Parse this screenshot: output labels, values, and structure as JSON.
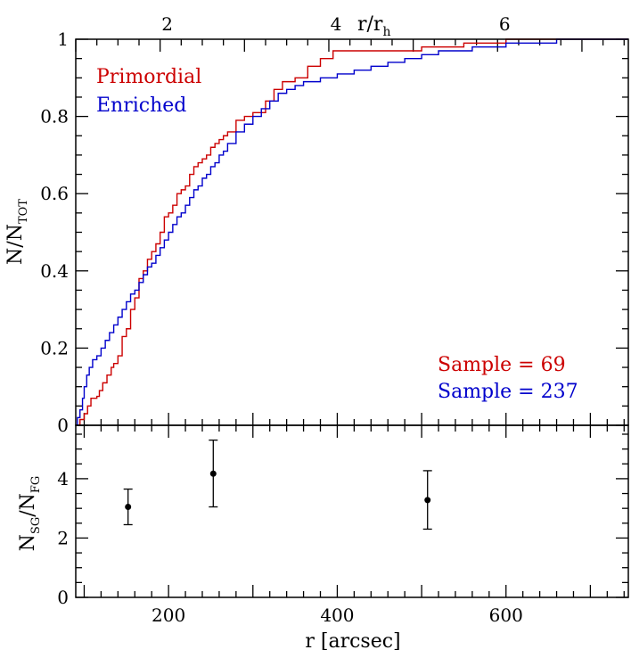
{
  "colors": {
    "primordial": "#cc0000",
    "enriched": "#0000cc",
    "axis": "#000000"
  },
  "chart_data": [
    {
      "type": "line",
      "panel": "top",
      "step": true,
      "xlabel": "",
      "ylabel_main": "N/N",
      "ylabel_sub": "TOT",
      "xlim": [
        90,
        745
      ],
      "ylim": [
        0,
        1
      ],
      "y_ticks": [
        "0",
        "0.2",
        "0.4",
        "0.6",
        "0.8",
        "1"
      ],
      "y_tick_values": [
        0,
        0.2,
        0.4,
        0.6,
        0.8,
        1
      ],
      "top_axis": {
        "label_main": "r/r",
        "label_sub": "h",
        "tick_labels": [
          "2",
          "4",
          "6"
        ],
        "tick_values": [
          190,
          390,
          590
        ]
      },
      "series": [
        {
          "name": "Primordial",
          "color_key": "primordial",
          "x": [
            90,
            95,
            100,
            104,
            108,
            115,
            118,
            122,
            127,
            132,
            135,
            140,
            145,
            150,
            155,
            160,
            165,
            170,
            175,
            180,
            185,
            190,
            195,
            200,
            205,
            210,
            215,
            220,
            225,
            230,
            235,
            240,
            245,
            250,
            255,
            260,
            265,
            270,
            280,
            290,
            300,
            315,
            325,
            335,
            350,
            365,
            380,
            395,
            420,
            460,
            500,
            550,
            600,
            660,
            700,
            745
          ],
          "y": [
            0,
            0.015,
            0.03,
            0.05,
            0.07,
            0.075,
            0.09,
            0.11,
            0.13,
            0.15,
            0.16,
            0.18,
            0.23,
            0.25,
            0.3,
            0.33,
            0.38,
            0.4,
            0.43,
            0.45,
            0.47,
            0.5,
            0.54,
            0.55,
            0.57,
            0.6,
            0.61,
            0.62,
            0.65,
            0.67,
            0.68,
            0.69,
            0.7,
            0.72,
            0.73,
            0.74,
            0.75,
            0.76,
            0.79,
            0.8,
            0.81,
            0.84,
            0.87,
            0.89,
            0.9,
            0.93,
            0.95,
            0.97,
            0.97,
            0.97,
            0.98,
            0.99,
            1.0,
            1.0,
            1.0,
            1.0
          ]
        },
        {
          "name": "Enriched",
          "color_key": "enriched",
          "x": [
            90,
            92,
            95,
            98,
            100,
            103,
            106,
            110,
            115,
            120,
            125,
            130,
            135,
            140,
            145,
            150,
            155,
            160,
            165,
            170,
            175,
            180,
            185,
            190,
            195,
            200,
            205,
            210,
            215,
            220,
            225,
            230,
            235,
            240,
            245,
            250,
            255,
            260,
            265,
            270,
            280,
            290,
            300,
            310,
            320,
            330,
            340,
            350,
            360,
            370,
            380,
            390,
            400,
            420,
            440,
            460,
            480,
            500,
            520,
            540,
            560,
            580,
            600,
            620,
            640,
            660,
            700,
            745
          ],
          "y": [
            0,
            0.02,
            0.04,
            0.07,
            0.1,
            0.13,
            0.15,
            0.17,
            0.18,
            0.2,
            0.22,
            0.24,
            0.26,
            0.28,
            0.3,
            0.32,
            0.34,
            0.35,
            0.37,
            0.39,
            0.41,
            0.42,
            0.44,
            0.46,
            0.48,
            0.5,
            0.52,
            0.54,
            0.55,
            0.57,
            0.59,
            0.61,
            0.62,
            0.64,
            0.65,
            0.67,
            0.68,
            0.7,
            0.71,
            0.73,
            0.76,
            0.78,
            0.8,
            0.82,
            0.84,
            0.86,
            0.87,
            0.88,
            0.89,
            0.89,
            0.9,
            0.9,
            0.91,
            0.92,
            0.93,
            0.94,
            0.95,
            0.96,
            0.97,
            0.97,
            0.98,
            0.98,
            0.99,
            0.99,
            0.99,
            1.0,
            1.0,
            1.0
          ]
        }
      ],
      "annotations": [
        {
          "text": "Primordial",
          "color_key": "primordial",
          "position": "top-left-1"
        },
        {
          "text": "Enriched",
          "color_key": "enriched",
          "position": "top-left-2"
        },
        {
          "text": "Sample = 69",
          "color_key": "primordial",
          "position": "bottom-right-1"
        },
        {
          "text": "Sample = 237",
          "color_key": "enriched",
          "position": "bottom-right-2"
        }
      ]
    },
    {
      "type": "scatter",
      "panel": "bottom",
      "xlabel": "r [arcsec]",
      "ylabel_main": "N",
      "ylabel_sub1": "SG",
      "ylabel_sep": "/N",
      "ylabel_sub2": "FG",
      "xlim": [
        90,
        745
      ],
      "ylim": [
        0,
        5.8
      ],
      "x_ticks": [
        "200",
        "400",
        "600"
      ],
      "x_tick_values": [
        200,
        400,
        600
      ],
      "y_ticks": [
        "0",
        "2",
        "4"
      ],
      "y_tick_values": [
        0,
        2,
        4
      ],
      "points": [
        {
          "x": 152,
          "y": 3.05,
          "err_low": 2.45,
          "err_high": 3.65
        },
        {
          "x": 253,
          "y": 4.17,
          "err_low": 3.05,
          "err_high": 5.3
        },
        {
          "x": 507,
          "y": 3.28,
          "err_low": 2.3,
          "err_high": 4.27
        }
      ]
    }
  ]
}
